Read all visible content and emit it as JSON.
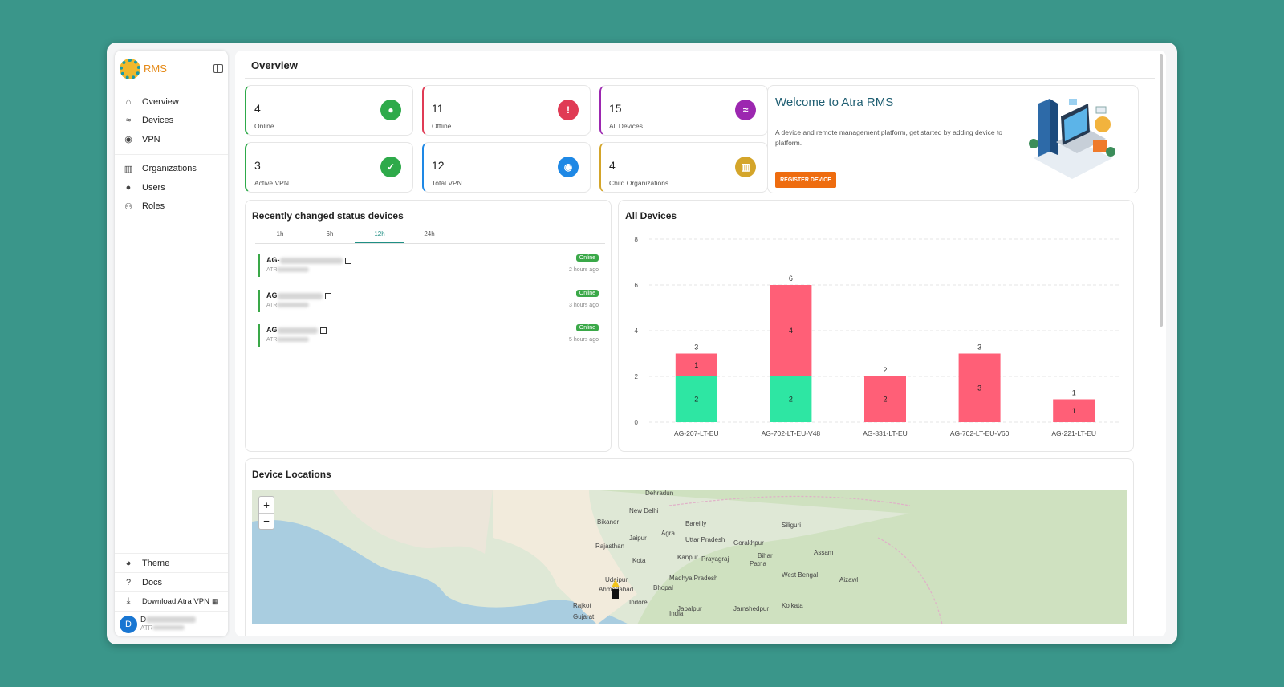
{
  "app": {
    "name": "RMS"
  },
  "sidebar": {
    "nav": [
      {
        "label": "Overview",
        "icon": "home-icon"
      },
      {
        "label": "Devices",
        "icon": "router-icon"
      },
      {
        "label": "VPN",
        "icon": "globe-icon"
      }
    ],
    "nav2": [
      {
        "label": "Organizations",
        "icon": "building-icon"
      },
      {
        "label": "Users",
        "icon": "user-icon"
      },
      {
        "label": "Roles",
        "icon": "roles-icon"
      }
    ],
    "bottom": {
      "theme": "Theme",
      "docs": "Docs",
      "download": "Download Atra VPN"
    },
    "user": {
      "initial": "D",
      "name": "D",
      "sub": "ATR"
    }
  },
  "page": {
    "title": "Overview"
  },
  "stats": [
    {
      "value": "4",
      "label": "Online",
      "color": "#2eaa4a",
      "icon": "bulb-icon",
      "glyph": "●"
    },
    {
      "value": "11",
      "label": "Offline",
      "color": "#e03b55",
      "icon": "alert-icon",
      "glyph": "!"
    },
    {
      "value": "15",
      "label": "All Devices",
      "color": "#9c27b0",
      "icon": "router-icon",
      "glyph": "≈"
    },
    {
      "value": "3",
      "label": "Active VPN",
      "color": "#2eaa4a",
      "icon": "shield-check-icon",
      "glyph": "✓"
    },
    {
      "value": "12",
      "label": "Total VPN",
      "color": "#1e88e5",
      "icon": "globe-icon",
      "glyph": "◉"
    },
    {
      "value": "4",
      "label": "Child Organizations",
      "color": "#d4a52a",
      "icon": "building-icon",
      "glyph": "▥"
    }
  ],
  "welcome": {
    "title": "Welcome to Atra RMS",
    "description": "A device and remote management platform, get started by adding device to platform.",
    "button": "REGISTER DEVICE"
  },
  "recent": {
    "title": "Recently changed status devices",
    "tabs": [
      "1h",
      "6h",
      "12h",
      "24h"
    ],
    "active_tab": "12h",
    "devices": [
      {
        "name": "AG-",
        "sub": "ATR",
        "status": "Online",
        "ago": "2 hours ago"
      },
      {
        "name": "AG",
        "sub": "ATR",
        "status": "Online",
        "ago": "3 hours ago"
      },
      {
        "name": "AG",
        "sub": "ATR",
        "status": "Online",
        "ago": "5 hours ago"
      }
    ]
  },
  "chart_data": {
    "type": "bar",
    "title": "All Devices",
    "stacked": true,
    "categories": [
      "AG-207-LT-EU",
      "AG-702-LT-EU-V48",
      "AG-831-LT-EU",
      "AG-702-LT-EU-V60",
      "AG-221-LT-EU"
    ],
    "series": [
      {
        "values": [
          2,
          2,
          0,
          0,
          0
        ],
        "color": "#2ee6a3"
      },
      {
        "values": [
          1,
          4,
          2,
          3,
          1
        ],
        "color": "#ff5f77"
      }
    ],
    "totals": [
      3,
      6,
      2,
      3,
      1
    ],
    "ylim": [
      0,
      8
    ],
    "yticks": [
      "0",
      "2",
      "4",
      "6",
      "8"
    ],
    "grid": true
  },
  "locations": {
    "title": "Device Locations",
    "zoom_in": "+",
    "zoom_out": "−",
    "labels": [
      "Dehradun",
      "New Delhi",
      "Bareilly",
      "Bikaner",
      "Jaipur",
      "Agra",
      "Uttar Pradesh",
      "Gorakhpur",
      "Kanpur",
      "Kota",
      "Prayagraj",
      "Patna",
      "Udaipur",
      "Ahmedabad",
      "Bhopal",
      "Jabalpur",
      "Jamshedpur",
      "Indore",
      "Rajkot",
      "India",
      "Kolkata",
      "Siliguri",
      "Assam",
      "Aizawl",
      "West Bengal",
      "Madhya Pradesh",
      "Rajasthan",
      "Gujarat",
      "Bihar"
    ]
  }
}
